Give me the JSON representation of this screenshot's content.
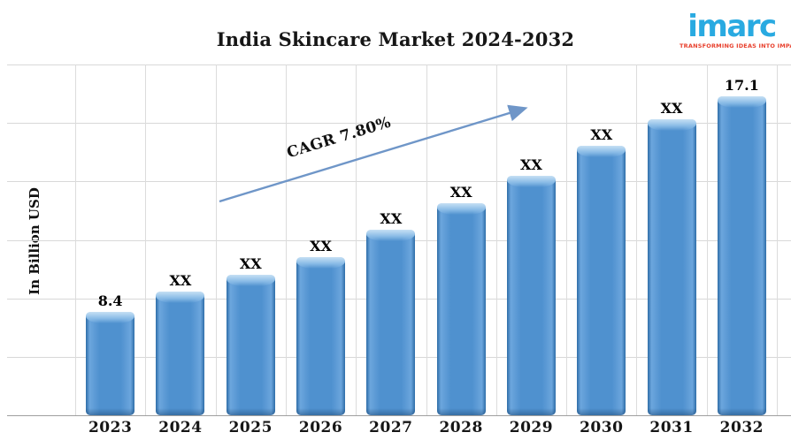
{
  "title": "India Skincare Market 2024-2032",
  "y_axis_label": "In Billion USD",
  "cagr_label": "CAGR 7.80%",
  "logo": {
    "name": "imarc",
    "tagline": "TRANSFORMING IDEAS INTO IMPACT"
  },
  "chart_data": {
    "type": "bar",
    "title": "India Skincare Market 2024-2032",
    "xlabel": "",
    "ylabel": "In Billion USD",
    "categories": [
      "2023",
      "2024",
      "2025",
      "2026",
      "2027",
      "2028",
      "2029",
      "2030",
      "2031",
      "2032"
    ],
    "bar_labels": [
      "8.4",
      "XX",
      "XX",
      "XX",
      "XX",
      "XX",
      "XX",
      "XX",
      "XX",
      "17.1"
    ],
    "values": [
      8.4,
      9.2,
      9.9,
      10.6,
      11.7,
      12.8,
      13.9,
      15.1,
      16.2,
      17.1
    ],
    "values_note": "Only 8.4 (2023) and 17.1 (2032) are printed on the chart; XX bars are masked, numeric values estimated from bar heights",
    "annotation": {
      "text": "CAGR 7.80%",
      "style": "diagonal arrow from above 2024 bar to above 2029 bar"
    },
    "ylim": [
      4.2,
      18.4
    ],
    "grid": true,
    "legend": false
  },
  "colors": {
    "bar_main": "#4f91cf",
    "bar_edge_dark": "#2e6da8",
    "bar_highlight": "#8cbde7",
    "gridline": "#d8d8d8",
    "axis_line": "#9f9f9f",
    "arrow": "#6f96c8",
    "text": "#111111",
    "logo_blue": "#29aae1",
    "logo_red": "#e8402d"
  }
}
